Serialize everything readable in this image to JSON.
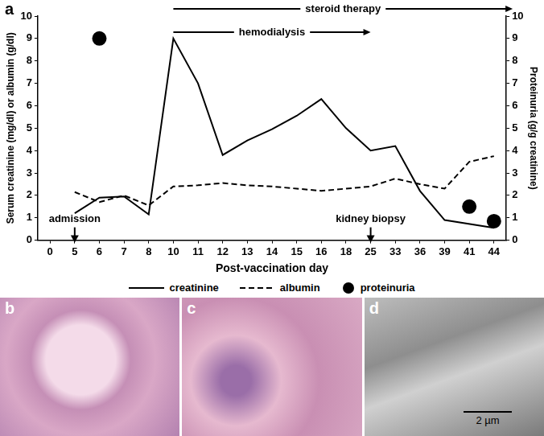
{
  "chart_data": {
    "type": "line",
    "panel": "a",
    "x_label": "Post-vaccination day",
    "y_label": "Serum creatinine (mg/dl) or albumin (g/dl)",
    "y2_label": "Proteinuria (g/g creatinine)",
    "categories": [
      "0",
      "5",
      "6",
      "7",
      "8",
      "10",
      "11",
      "12",
      "13",
      "14",
      "15",
      "16",
      "18",
      "25",
      "33",
      "36",
      "39",
      "41",
      "44"
    ],
    "series": [
      {
        "name": "creatinine",
        "color": "#000000",
        "line_style": "solid",
        "marker": "none",
        "values": [
          null,
          1.2,
          1.9,
          1.95,
          1.15,
          9.0,
          7.0,
          3.8,
          4.45,
          4.95,
          5.55,
          6.3,
          5.0,
          4.0,
          4.2,
          2.2,
          0.9,
          null,
          0.55
        ]
      },
      {
        "name": "albumin",
        "color": "#000000",
        "line_style": "dashed",
        "marker": "none",
        "values": [
          null,
          2.15,
          1.7,
          2.0,
          1.55,
          2.4,
          2.45,
          2.55,
          2.45,
          2.4,
          2.3,
          2.2,
          2.3,
          2.4,
          2.75,
          2.5,
          2.3,
          3.5,
          3.75
        ]
      },
      {
        "name": "proteinuria",
        "type": "scatter",
        "axis": "y2",
        "color": "#000000",
        "marker": "circle",
        "values": [
          null,
          null,
          9.0,
          null,
          null,
          null,
          null,
          null,
          null,
          null,
          null,
          null,
          null,
          null,
          null,
          null,
          null,
          1.5,
          0.85
        ]
      }
    ],
    "ylim": [
      0,
      10
    ],
    "yticks": [
      0,
      1,
      2,
      3,
      4,
      5,
      6,
      7,
      8,
      9,
      10
    ],
    "y2lim": [
      0,
      10
    ],
    "y2ticks": [
      0,
      1,
      2,
      3,
      4,
      5,
      6,
      7,
      8,
      9,
      10
    ],
    "grid": false,
    "legend": "bottom",
    "annotations": [
      {
        "text": "steroid therapy",
        "from": "10"
      },
      {
        "text": "hemodialysis",
        "from": "10",
        "to": "25"
      },
      {
        "text": "admission",
        "at": "5"
      },
      {
        "text": "kidney biopsy",
        "at": "25"
      }
    ]
  },
  "panels": [
    {
      "label": "b"
    },
    {
      "label": "c"
    },
    {
      "label": "d",
      "scale_bar": "2 µm"
    }
  ]
}
